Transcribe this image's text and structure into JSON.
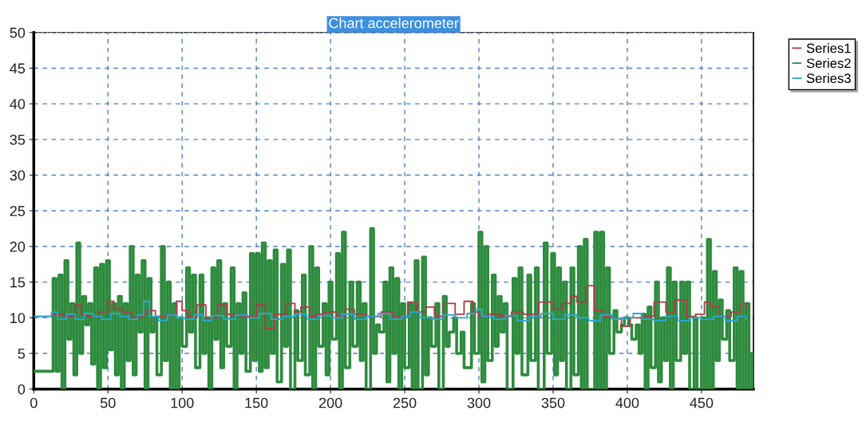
{
  "chart_data": {
    "type": "step",
    "title": "Chart accelerometer",
    "xlim": [
      0,
      485
    ],
    "xticks": [
      0,
      50,
      100,
      150,
      200,
      250,
      300,
      350,
      400,
      450
    ],
    "ylim": [
      0,
      50
    ],
    "yticks": [
      0,
      5,
      10,
      15,
      20,
      25,
      30,
      35,
      40,
      45,
      50
    ],
    "grid": true,
    "legend": "top right",
    "line_style": "solid",
    "marker": "none",
    "series": [
      {
        "name": "Series1",
        "color": "#b03a48",
        "x": [
          0,
          12,
          20,
          28,
          32,
          36,
          44,
          50,
          54,
          60,
          66,
          72,
          76,
          82,
          90,
          96,
          100,
          104,
          110,
          116,
          124,
          130,
          140,
          150,
          156,
          162,
          170,
          176,
          180,
          186,
          190,
          196,
          204,
          210,
          216,
          224,
          234,
          242,
          252,
          258,
          264,
          270,
          276,
          284,
          290,
          296,
          300,
          306,
          314,
          322,
          330,
          340,
          350,
          356,
          362,
          366,
          372,
          378,
          384,
          390,
          396,
          402,
          410,
          418,
          426,
          432,
          440,
          446,
          452,
          456,
          462,
          470,
          476,
          480
        ],
        "values": [
          10.2,
          10.5,
          10.2,
          11.8,
          10.5,
          10.2,
          10.8,
          12.3,
          11.2,
          10.8,
          10,
          10.5,
          11,
          10.2,
          10.5,
          12.3,
          11,
          10.2,
          11.8,
          10,
          11.8,
          10.5,
          10.2,
          11.8,
          8.5,
          10.5,
          12,
          10.8,
          11.5,
          10.2,
          10.5,
          10.8,
          10.2,
          11.2,
          10.5,
          10.2,
          10.8,
          10.2,
          12.2,
          10.8,
          11.5,
          10.2,
          12,
          10.5,
          12.3,
          10.8,
          10.2,
          10.5,
          10.2,
          10.8,
          10.5,
          12.2,
          11.2,
          12,
          13,
          12.2,
          14.5,
          11,
          10.2,
          9.8,
          8.8,
          10,
          10.2,
          12.2,
          10.8,
          12.5,
          10.2,
          10.5,
          12.2,
          11.5,
          10.2,
          10.8,
          12,
          11.2
        ]
      },
      {
        "name": "Series2",
        "color": "#2e8b3e",
        "x": [
          0,
          13,
          15,
          17,
          19,
          21,
          23,
          25,
          27,
          29,
          31,
          33,
          35,
          37,
          39,
          41,
          43,
          45,
          47,
          49,
          51,
          53,
          55,
          57,
          59,
          61,
          63,
          65,
          67,
          69,
          71,
          73,
          75,
          77,
          79,
          81,
          83,
          86,
          88,
          90,
          92,
          94,
          96,
          98,
          100,
          103,
          105,
          107,
          109,
          112,
          114,
          116,
          118,
          120,
          122,
          124,
          126,
          128,
          130,
          133,
          135,
          137,
          139,
          141,
          143,
          146,
          148,
          150,
          152,
          154,
          156,
          158,
          160,
          162,
          164,
          167,
          169,
          171,
          173,
          176,
          178,
          181,
          183,
          186,
          188,
          190,
          192,
          195,
          197,
          199,
          201,
          204,
          206,
          208,
          210,
          213,
          215,
          218,
          220,
          222,
          224,
          227,
          229,
          231,
          233,
          236,
          238,
          240,
          242,
          244,
          246,
          248,
          250,
          253,
          255,
          257,
          259,
          262,
          264,
          266,
          268,
          271,
          273,
          276,
          278,
          280,
          283,
          285,
          288,
          290,
          295,
          297,
          300,
          302,
          304,
          306,
          309,
          311,
          313,
          315,
          317,
          319,
          323,
          325,
          327,
          329,
          333,
          335,
          338,
          340,
          344,
          346,
          349,
          351,
          353,
          355,
          357,
          359,
          362,
          364,
          367,
          369,
          371,
          373,
          378,
          380,
          382,
          384,
          386,
          388,
          391,
          393,
          396,
          398,
          401,
          403,
          406,
          408,
          410,
          412,
          414,
          416,
          419,
          421,
          423,
          425,
          427,
          429,
          431,
          433,
          436,
          438,
          440,
          442,
          445,
          447,
          450,
          452,
          454,
          456,
          458,
          460,
          462,
          464,
          467,
          469,
          472,
          474,
          476,
          478,
          480,
          482,
          484
        ],
        "values": [
          2.5,
          15.5,
          2.5,
          16,
          0,
          18,
          7,
          12,
          2,
          20.5,
          5,
          13,
          9,
          12,
          3.5,
          17,
          0,
          17.5,
          3,
          18,
          5.5,
          12,
          2,
          13,
          0,
          12,
          4,
          20,
          2,
          16,
          8,
          18,
          0,
          15.5,
          8,
          10,
          2,
          20,
          4,
          15,
          0,
          12,
          0,
          10,
          6,
          17,
          8,
          16,
          3,
          16,
          5,
          10,
          0,
          17,
          7,
          18,
          3,
          12,
          6,
          17,
          0,
          12,
          5,
          13.5,
          2.5,
          19,
          4,
          19,
          2.5,
          20.5,
          3,
          18,
          5,
          19.5,
          1,
          17.5,
          6,
          19.5,
          0,
          11,
          4,
          16,
          2,
          20,
          0,
          17,
          6,
          12,
          2,
          15,
          7,
          19,
          0,
          22,
          3,
          15,
          6,
          15,
          4,
          12,
          0,
          22.5,
          5,
          9,
          8,
          15,
          1,
          17,
          5,
          15.5,
          0,
          12,
          3,
          12,
          0,
          18,
          0,
          18.5,
          2,
          10,
          6,
          12,
          0,
          13,
          6,
          8,
          10,
          5,
          8,
          3,
          12,
          5,
          22,
          1,
          20,
          4,
          16,
          6,
          13,
          8,
          12,
          0,
          15.5,
          5,
          17,
          2,
          16,
          4,
          17,
          0,
          20.5,
          5,
          19,
          2,
          17,
          4,
          15,
          0,
          17,
          2,
          20,
          0,
          21,
          0,
          22,
          0,
          22,
          0,
          17,
          5,
          11,
          8,
          9,
          10,
          9,
          7,
          9,
          5,
          10.5,
          0,
          11.5,
          3,
          15,
          1,
          10,
          4,
          17,
          0,
          15,
          4,
          15,
          5,
          15,
          0,
          10,
          0,
          10,
          0,
          21,
          0,
          16.5,
          4,
          12.5,
          7,
          11,
          4,
          17,
          0,
          16.5,
          0,
          12,
          0,
          5
        ]
      },
      {
        "name": "Series3",
        "color": "#29a8d8",
        "x": [
          0,
          12,
          16,
          22,
          28,
          34,
          40,
          46,
          52,
          58,
          64,
          70,
          74,
          78,
          84,
          90,
          96,
          102,
          108,
          114,
          120,
          128,
          136,
          144,
          152,
          160,
          168,
          176,
          184,
          192,
          200,
          208,
          216,
          224,
          232,
          240,
          248,
          254,
          260,
          268,
          276,
          284,
          292,
          298,
          302,
          310,
          318,
          326,
          334,
          342,
          350,
          358,
          366,
          374,
          382,
          390,
          398,
          404,
          410,
          418,
          426,
          434,
          442,
          450,
          458,
          466,
          474,
          480
        ],
        "values": [
          10.2,
          10.8,
          9.8,
          10.5,
          9.8,
          10.6,
          10.2,
          9.8,
          10.6,
          10.2,
          9.8,
          10.4,
          12.3,
          10.2,
          9.6,
          10.4,
          10.0,
          9.8,
          10.4,
          9.6,
          10.3,
          9.8,
          10.4,
          10.0,
          10.6,
          9.8,
          10.2,
          10.5,
          9.8,
          10.3,
          10.0,
          10.5,
          9.8,
          10.2,
          10.6,
          9.8,
          10.2,
          10.8,
          10.0,
          9.8,
          10.4,
          10.0,
          10.6,
          11.2,
          10.2,
          9.8,
          10.3,
          9.6,
          10.2,
          10.6,
          9.8,
          10.4,
          10.0,
          9.6,
          10.4,
          9.8,
          10.0,
          10.6,
          9.8,
          9.6,
          10.2,
          9.6,
          10.0,
          9.8,
          10.2,
          9.6,
          10.2,
          9.8
        ]
      }
    ]
  }
}
